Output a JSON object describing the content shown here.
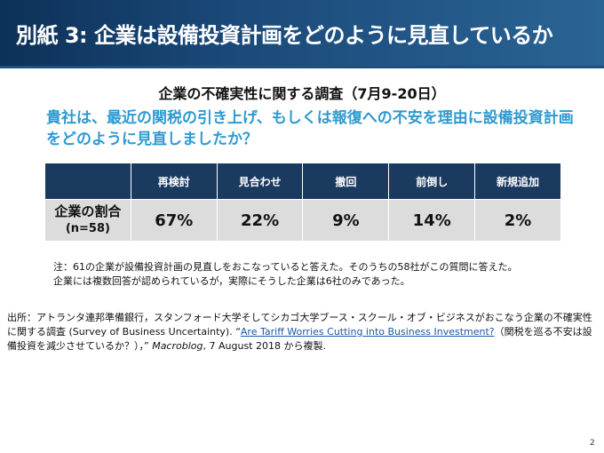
{
  "title": "別紙 3: 企業は設備投資計画をどのように見直しているか",
  "subtitle": "企業の不確実性に関する調査（7月9-20日）",
  "question": "貴社は、最近の関税の引き上げ、もしくは報復への不安を理由に設備投資計画をどのように見直しましたか？",
  "table": {
    "headers": [
      "",
      "再検討",
      "見合わせ",
      "撤回",
      "前倒し",
      "新規追加"
    ],
    "row_label": "企業の割合",
    "row_sublabel": "(n=58)",
    "values": [
      "67%",
      "22%",
      "9%",
      "14%",
      "2%"
    ]
  },
  "note": {
    "line1": "注：61の企業が設備投資計画の見直しをおこなっていると答えた。そのうちの58社がこの質問に答えた。",
    "line2": "企業には複数回答が認められているが，実際にそうした企業は6社のみであった。"
  },
  "source": {
    "prefix": "出所：アトランタ連邦準備銀行，スタンフォード大学そしてシカゴ大学ブース・スクール・オブ・ビジネスがおこなう企業の不確実性に関する調査 (Survey of Business Uncertainty). “",
    "link_text": "Are Tariff Worries Cutting into Business Investment?",
    "middle": "（関税を巡る不安は設備投資を減少させているか？），” ",
    "publication": "Macroblog",
    "suffix": ", 7 August 2018 から複製."
  },
  "page_number": "2"
}
